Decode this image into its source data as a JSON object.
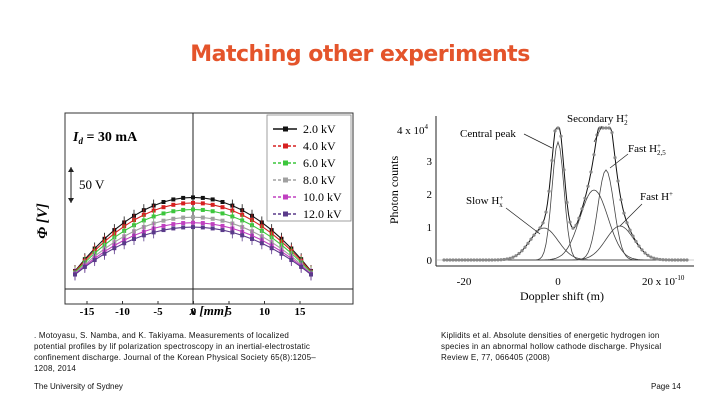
{
  "slide": {
    "title": "Matching other experiments",
    "title_color": "#e4542b",
    "footer_left": "The University of Sydney",
    "footer_right": "Page 14"
  },
  "left_figure": {
    "annotation": "I_d = 30 mA",
    "annotation_prefix": "I",
    "annotation_sub": "d",
    "annotation_suffix": " = 30 mA",
    "scale_bar": "50 V",
    "ylabel": "Φ [V]",
    "xlabel": "x [mm]",
    "xticks": [
      "-15",
      "-10",
      "-5",
      "0",
      "5",
      "10",
      "15"
    ],
    "legend": [
      "2.0  kV",
      "4.0  kV",
      "6.0  kV",
      "8.0  kV",
      "10.0  kV",
      "12.0  kV"
    ],
    "series_colors": [
      "#111111",
      "#d62020",
      "#3cc63c",
      "#a0a0a0",
      "#c040c0",
      "#5a3a8a"
    ],
    "caption_lines": [
      ". Motoyasu, S. Namba, and K. Takiyama. Measurements of localized",
      "potential profiles by lif polarization spectroscopy in an inertial-electrostatic",
      "confinement discharge. Journal of the Korean Physical Society 65(8):1205–",
      "1208, 2014"
    ]
  },
  "right_figure": {
    "ylabel": "Photon counts",
    "xlabel": "Doppler shift (m)",
    "ymax_label": "4 x 10",
    "ymax_exp": "4",
    "yticks": [
      "3",
      "2",
      "1",
      "0"
    ],
    "xticks": [
      "-20",
      "0",
      "20 x 10"
    ],
    "xtick_exp": "-10",
    "labels": {
      "central_peak": "Central peak",
      "secondary": "Secondary H",
      "secondary_sup": "+",
      "secondary_sub": "2",
      "fast_h25": "Fast H",
      "fast_h25_sup": "+",
      "fast_h25_sub": "2,5",
      "slow": "Slow H",
      "slow_sup": "+",
      "slow_sub": "x",
      "fast_h": "Fast H",
      "fast_h_sup": "+"
    },
    "caption_lines": [
      "Kiplidits et al. Absolute densities of energetic hydrogen ion",
      "species in an abnormal hollow cathode discharge. Physical",
      "Review E, 77, 066405 (2008)"
    ]
  }
}
